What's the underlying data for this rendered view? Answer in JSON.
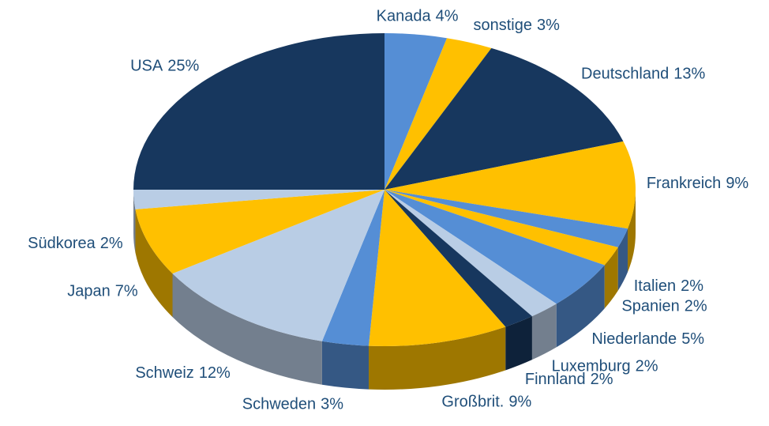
{
  "chart_data": {
    "type": "pie",
    "categories": [
      "Kanada",
      "sonstige",
      "Deutschland",
      "Frankreich",
      "Italien",
      "Spanien",
      "Niederlande",
      "Luxemburg",
      "Finnland",
      "Großbrit.",
      "Schweden",
      "Schweiz",
      "Japan",
      "Südkorea",
      "USA"
    ],
    "values": [
      4,
      3,
      13,
      9,
      2,
      2,
      5,
      2,
      2,
      9,
      3,
      12,
      7,
      2,
      25
    ],
    "value_labels": [
      "4%",
      "3%",
      "13%",
      "9%",
      "2%",
      "2%",
      "5%",
      "2%",
      "2%",
      "9%",
      "3%",
      "12%",
      "7%",
      "2%",
      "25%"
    ],
    "colors": [
      "#558ed5",
      "#ffc000",
      "#17375e",
      "#ffc000",
      "#558ed5",
      "#ffc000",
      "#558ed5",
      "#b9cde5",
      "#17375e",
      "#ffc000",
      "#558ed5",
      "#b9cde5",
      "#ffc000",
      "#b9cde5",
      "#17375e"
    ],
    "three_d": true
  }
}
